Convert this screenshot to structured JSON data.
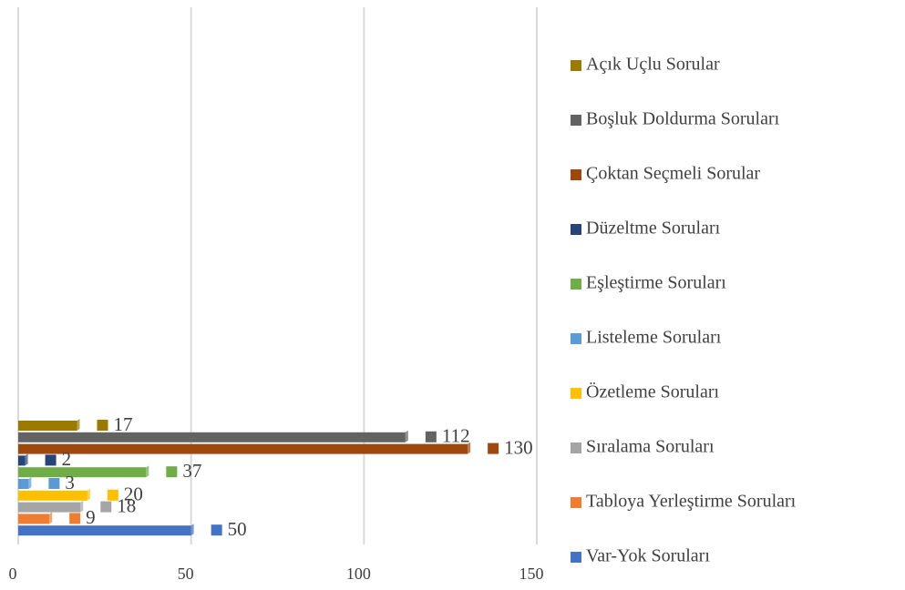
{
  "chart_data": {
    "type": "bar",
    "orientation": "horizontal",
    "categories": [
      null
    ],
    "series": [
      {
        "name": "Açık Uçlu Sorular",
        "color": "#9c7a00",
        "values": [
          17
        ]
      },
      {
        "name": "Boşluk Doldurma Soruları",
        "color": "#636363",
        "values": [
          112
        ]
      },
      {
        "name": "Çoktan Seçmeli Sorular",
        "color": "#9e480e",
        "values": [
          130
        ]
      },
      {
        "name": "Düzeltme Soruları",
        "color": "#264478",
        "values": [
          2
        ]
      },
      {
        "name": "Eşleştirme Soruları",
        "color": "#70ad47",
        "values": [
          37
        ]
      },
      {
        "name": "Listeleme Soruları",
        "color": "#5b9bd5",
        "values": [
          3
        ]
      },
      {
        "name": "Özetleme Soruları",
        "color": "#ffc000",
        "values": [
          20
        ]
      },
      {
        "name": "Sıralama Soruları",
        "color": "#a5a5a5",
        "values": [
          18
        ]
      },
      {
        "name": "Tabloya Yerleştirme Soruları",
        "color": "#ed7d31",
        "values": [
          9
        ]
      },
      {
        "name": "Var-Yok Soruları",
        "color": "#4472c4",
        "values": [
          50
        ]
      }
    ],
    "xlim": [
      0,
      150
    ],
    "xticks": [
      0,
      50,
      100,
      150
    ],
    "grid": true,
    "legend": "right"
  }
}
